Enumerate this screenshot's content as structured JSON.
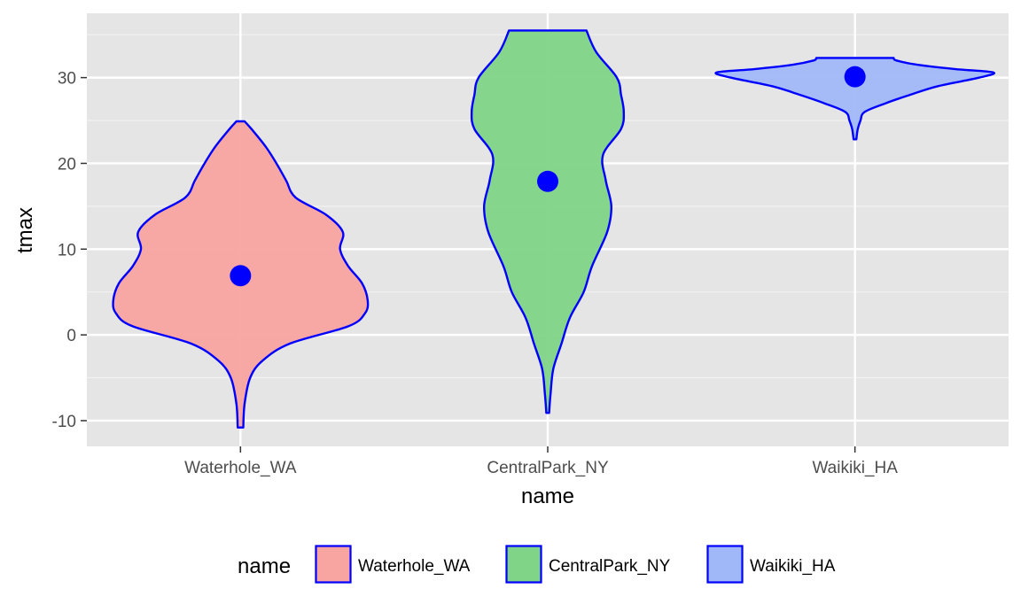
{
  "chart_data": {
    "type": "violin",
    "xlabel": "name",
    "ylabel": "tmax",
    "categories": [
      "Waterhole_WA",
      "CentralPark_NY",
      "Waikiki_HA"
    ],
    "ylim": [
      -13,
      37.5
    ],
    "yticks": [
      -10,
      0,
      10,
      20,
      30
    ],
    "grid": true,
    "legend": {
      "title": "name",
      "position": "bottom",
      "entries": [
        "Waterhole_WA",
        "CentralPark_NY",
        "Waikiki_HA"
      ]
    },
    "outline_color": "#0000ff",
    "point_color": "#0000ff",
    "series": [
      {
        "name": "Waterhole_WA",
        "color": "#f8a4a0",
        "point": 6.9,
        "density": [
          [
            -10.8,
            0.02
          ],
          [
            -8,
            0.03
          ],
          [
            -5,
            0.07
          ],
          [
            -3,
            0.16
          ],
          [
            -1,
            0.36
          ],
          [
            1,
            0.78
          ],
          [
            2.5,
            0.9
          ],
          [
            4,
            0.92
          ],
          [
            6,
            0.88
          ],
          [
            8,
            0.78
          ],
          [
            10,
            0.72
          ],
          [
            12,
            0.74
          ],
          [
            14,
            0.62
          ],
          [
            16,
            0.4
          ],
          [
            18,
            0.33
          ],
          [
            20,
            0.26
          ],
          [
            22,
            0.18
          ],
          [
            24,
            0.08
          ],
          [
            24.9,
            0.03
          ]
        ]
      },
      {
        "name": "CentralPark_NY",
        "color": "#80d488",
        "point": 17.9,
        "density": [
          [
            -9.1,
            0.01
          ],
          [
            -7,
            0.02
          ],
          [
            -4,
            0.04
          ],
          [
            -1,
            0.1
          ],
          [
            2,
            0.16
          ],
          [
            5,
            0.26
          ],
          [
            8,
            0.32
          ],
          [
            12,
            0.43
          ],
          [
            15,
            0.46
          ],
          [
            18,
            0.42
          ],
          [
            21,
            0.4
          ],
          [
            24,
            0.53
          ],
          [
            26,
            0.55
          ],
          [
            28,
            0.53
          ],
          [
            30,
            0.5
          ],
          [
            33,
            0.35
          ],
          [
            35.5,
            0.28
          ]
        ]
      },
      {
        "name": "Waikiki_HA",
        "color": "#a0b8f8",
        "point": 30.1,
        "density": [
          [
            22.8,
            0.01
          ],
          [
            24,
            0.02
          ],
          [
            25,
            0.04
          ],
          [
            26,
            0.07
          ],
          [
            27,
            0.22
          ],
          [
            28,
            0.4
          ],
          [
            29,
            0.6
          ],
          [
            30,
            0.9
          ],
          [
            30.6,
            1.0
          ],
          [
            31,
            0.72
          ],
          [
            31.5,
            0.45
          ],
          [
            32,
            0.3
          ],
          [
            32.3,
            0.28
          ]
        ]
      }
    ]
  }
}
